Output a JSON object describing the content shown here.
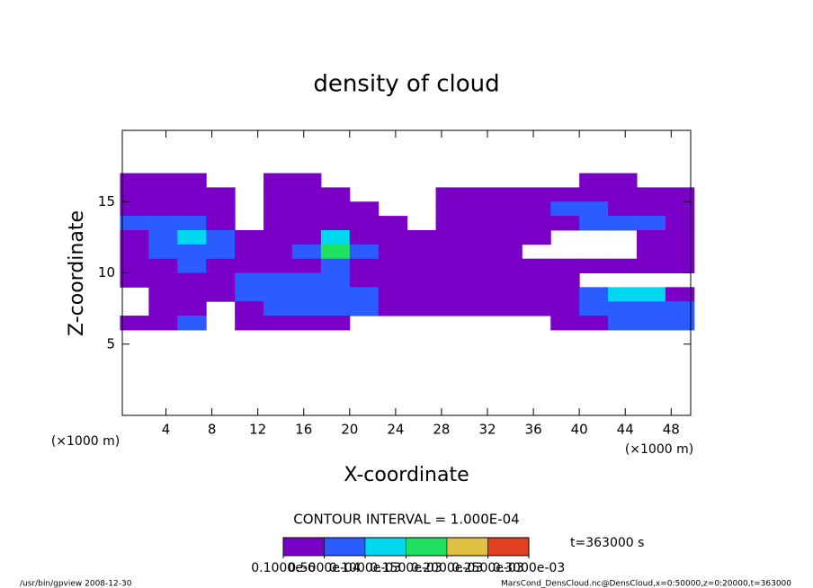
{
  "chart_data": {
    "type": "heatmap",
    "title": "density of cloud",
    "x_label": "X-coordinate",
    "y_label": "Z-coordinate",
    "x_unit_left": "(×1000 m)",
    "x_unit_right": "(×1000 m)",
    "contour_interval": "CONTOUR INTERVAL = 1.000E-04",
    "time_label": "t=363000 s",
    "footer_left": "/usr/bin/gpview   2008-12-30",
    "footer_right": "MarsCond_DensCloud.nc@DensCloud,x=0:50000,z=0:20000,t=363000",
    "xlim": [
      0.2,
      49.7
    ],
    "ylim": [
      0,
      20
    ],
    "xticks": [
      4,
      8,
      12,
      16,
      20,
      24,
      28,
      32,
      36,
      40,
      44,
      48
    ],
    "yticks": [
      5,
      10,
      15
    ],
    "x": [
      1.25,
      3.75,
      6.25,
      8.75,
      11.25,
      13.75,
      16.25,
      18.75,
      21.25,
      23.75,
      26.25,
      28.75,
      31.25,
      33.75,
      36.25,
      38.75,
      41.25,
      43.75,
      46.25,
      48.75
    ],
    "y": [
      16.5,
      15.5,
      14.5,
      13.5,
      12.5,
      11.5,
      10.5,
      9.5,
      8.5,
      7.5,
      6.5
    ],
    "z": [
      [
        2e-05,
        2e-05,
        2e-05,
        null,
        null,
        2e-05,
        2e-05,
        null,
        null,
        null,
        null,
        null,
        null,
        null,
        null,
        null,
        2e-05,
        2e-05,
        null,
        null
      ],
      [
        2e-05,
        2e-05,
        2e-05,
        2e-05,
        null,
        2e-05,
        2e-05,
        2e-05,
        null,
        null,
        null,
        2e-05,
        2e-05,
        2e-05,
        2e-05,
        2e-05,
        2e-05,
        2e-05,
        2e-05,
        2e-05
      ],
      [
        2e-05,
        2e-05,
        2e-05,
        2e-05,
        null,
        2e-05,
        2e-05,
        2e-05,
        2e-05,
        null,
        null,
        2e-05,
        2e-05,
        2e-05,
        2e-05,
        9e-05,
        6e-05,
        2e-05,
        2e-05,
        2e-05
      ],
      [
        6e-05,
        9e-05,
        9e-05,
        2e-05,
        null,
        2e-05,
        2e-05,
        2e-05,
        2e-05,
        2e-05,
        null,
        2e-05,
        2e-05,
        2e-05,
        2e-05,
        2e-05,
        6e-05,
        9e-05,
        6e-05,
        2e-05
      ],
      [
        2e-05,
        9e-05,
        0.00012,
        6e-05,
        2e-05,
        2e-05,
        2e-05,
        0.00012,
        2e-05,
        2e-05,
        2e-05,
        2e-05,
        2e-05,
        2e-05,
        2e-05,
        null,
        null,
        null,
        2e-05,
        2e-05
      ],
      [
        2e-05,
        6e-05,
        6e-05,
        9e-05,
        2e-05,
        2e-05,
        6e-05,
        0.00017,
        6e-05,
        2e-05,
        2e-05,
        2e-05,
        2e-05,
        2e-05,
        null,
        null,
        null,
        null,
        2e-05,
        2e-05
      ],
      [
        2e-05,
        2e-05,
        6e-05,
        2e-05,
        2e-05,
        2e-05,
        2e-05,
        6e-05,
        2e-05,
        2e-05,
        2e-05,
        2e-05,
        2e-05,
        2e-05,
        2e-05,
        2e-05,
        2e-05,
        2e-05,
        2e-05,
        2e-05
      ],
      [
        2e-05,
        2e-05,
        2e-05,
        2e-05,
        6e-05,
        9e-05,
        9e-05,
        6e-05,
        2e-05,
        2e-05,
        2e-05,
        2e-05,
        2e-05,
        2e-05,
        2e-05,
        2e-05,
        null,
        null,
        null,
        null
      ],
      [
        null,
        2e-05,
        2e-05,
        2e-05,
        6e-05,
        9e-05,
        6e-05,
        9e-05,
        6e-05,
        2e-05,
        2e-05,
        2e-05,
        2e-05,
        2e-05,
        2e-05,
        2e-05,
        6e-05,
        0.00012,
        0.00012,
        2e-05
      ],
      [
        null,
        2e-05,
        2e-05,
        null,
        2e-05,
        6e-05,
        6e-05,
        9e-05,
        6e-05,
        2e-05,
        2e-05,
        2e-05,
        2e-05,
        2e-05,
        2e-05,
        2e-05,
        6e-05,
        9e-05,
        9e-05,
        6e-05
      ],
      [
        2e-05,
        2e-05,
        6e-05,
        null,
        2e-05,
        2e-05,
        2e-05,
        2e-05,
        null,
        null,
        null,
        null,
        null,
        null,
        null,
        2e-05,
        2e-05,
        6e-05,
        6e-05,
        6e-05
      ]
    ],
    "colorbar_ticks": [
      {
        "value": 1e-07,
        "label": "0.1000e-6"
      },
      {
        "value": 5e-05,
        "label": "0.5000e-04"
      },
      {
        "value": 0.0001,
        "label": "0.1000e-03"
      },
      {
        "value": 0.00015,
        "label": "0.1500e-03"
      },
      {
        "value": 0.0002,
        "label": "0.2000e-03"
      },
      {
        "value": 0.00025,
        "label": "0.2500e-03"
      },
      {
        "value": 0.0003,
        "label": "0.3000e-03"
      }
    ],
    "colors": [
      "#7a00c8",
      "#2a5cff",
      "#00d8f0",
      "#20e060",
      "#e0c040",
      "#e04020"
    ]
  }
}
